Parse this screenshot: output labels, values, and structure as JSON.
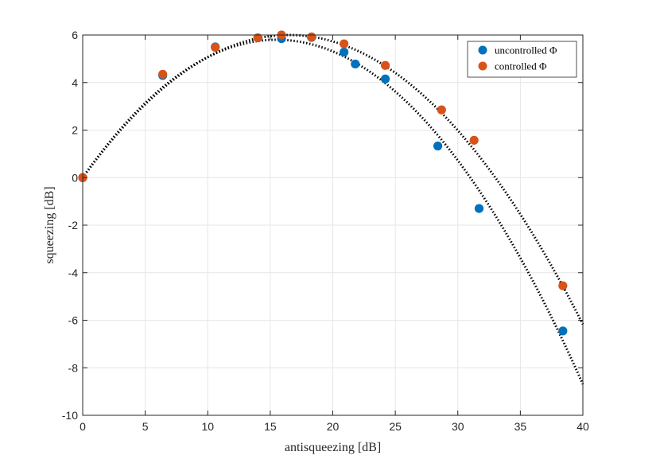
{
  "chart_data": {
    "type": "scatter",
    "xlabel": "antisqueezing [dB]",
    "ylabel": "squeezing [dB]",
    "xlim": [
      0,
      40
    ],
    "ylim": [
      -10,
      6
    ],
    "xticks": [
      0,
      5,
      10,
      15,
      20,
      25,
      30,
      35,
      40
    ],
    "yticks": [
      -10,
      -8,
      -6,
      -4,
      -2,
      0,
      2,
      4,
      6
    ],
    "grid": true,
    "legend_position": "top-right",
    "series": [
      {
        "name": "uncontrolled Φ",
        "color": "#0072BD",
        "x": [
          0,
          6.4,
          10.6,
          14.0,
          15.9,
          18.3,
          20.9,
          21.8,
          24.2,
          28.4,
          31.7,
          38.4
        ],
        "y": [
          0,
          4.3,
          5.5,
          5.88,
          5.85,
          5.9,
          5.28,
          4.78,
          4.15,
          1.33,
          -1.3,
          -6.45
        ]
      },
      {
        "name": "controlled Φ",
        "color": "#D95319",
        "x": [
          0,
          6.4,
          10.6,
          14.0,
          15.9,
          18.3,
          20.9,
          24.2,
          28.7,
          31.3,
          38.4
        ],
        "y": [
          0,
          4.35,
          5.48,
          5.88,
          6.0,
          5.92,
          5.63,
          4.72,
          2.85,
          1.57,
          -4.55
        ]
      }
    ],
    "fits": [
      {
        "style": "dotted",
        "color": "#000000",
        "x": [
          0,
          40
        ],
        "peak_x": 15.5,
        "peak_y": 5.8,
        "y_at_40": -8.5
      },
      {
        "style": "dotted",
        "color": "#000000",
        "x": [
          0,
          40
        ],
        "peak_x": 16.5,
        "peak_y": 6.0,
        "y_at_40": -6.0
      }
    ]
  }
}
